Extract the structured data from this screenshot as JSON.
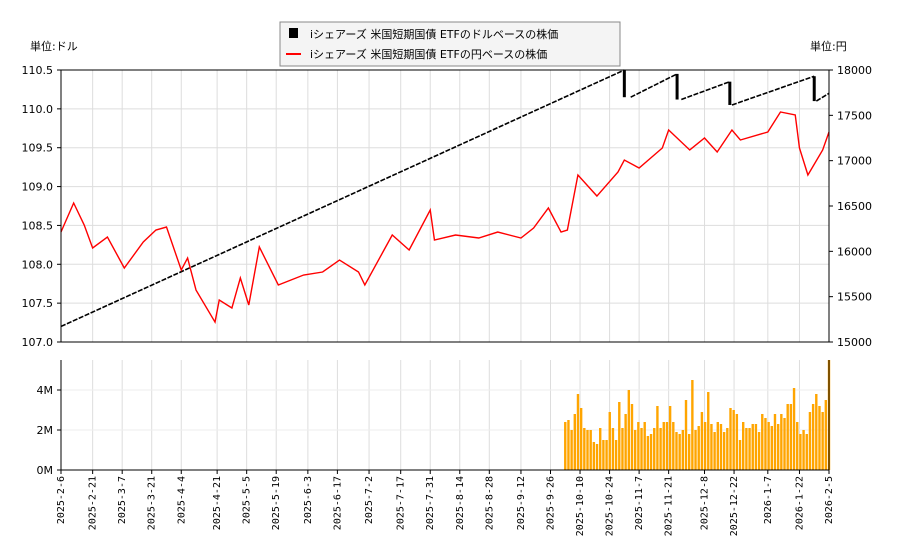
{
  "chart_data": [
    {
      "type": "line",
      "legend": [
        "iシェアーズ 米国短期国債 ETFのドルベースの株価",
        "iシェアーズ 米国短期国債 ETFの円ベースの株価"
      ],
      "legend_placement": "top-center",
      "ylabel_left": "単位:ドル",
      "ylabel_right": "単位:円",
      "ylim_left": [
        107.0,
        110.5
      ],
      "ylim_right": [
        15000,
        18000
      ],
      "yticks_left": [
        "107.0",
        "107.5",
        "108.0",
        "108.5",
        "109.0",
        "109.5",
        "110.0",
        "110.5"
      ],
      "yticks_right": [
        "15000",
        "15500",
        "16000",
        "16500",
        "17000",
        "17500",
        "18000"
      ],
      "grid": true,
      "colors": {
        "usd": "#000000",
        "jpy": "#ff0000"
      },
      "series": [
        {
          "name": "iシェアーズ 米国短期国債 ETFのドルベースの株価",
          "axis": "left",
          "points": [
            [
              "2025-02-06",
              107.2
            ],
            [
              "2025-10-31",
              110.5
            ],
            [
              "2025-11-03",
              110.15
            ],
            [
              "2025-11-25",
              110.45
            ],
            [
              "2025-11-27",
              110.12
            ],
            [
              "2025-12-20",
              110.35
            ],
            [
              "2025-12-21",
              110.05
            ],
            [
              "2026-01-29",
              110.42
            ],
            [
              "2026-01-30",
              110.1
            ],
            [
              "2026-02-05",
              110.2
            ]
          ]
        },
        {
          "name": "iシェアーズ 米国短期国債 ETFの円ベースの株価",
          "axis": "right",
          "points": [
            [
              "2025-02-06",
              16213
            ],
            [
              "2025-02-12",
              16533
            ],
            [
              "2025-02-17",
              16290
            ],
            [
              "2025-02-21",
              16037
            ],
            [
              "2025-02-28",
              16158
            ],
            [
              "2025-03-08",
              15816
            ],
            [
              "2025-03-17",
              16103
            ],
            [
              "2025-03-23",
              16235
            ],
            [
              "2025-03-28",
              16268
            ],
            [
              "2025-04-04",
              15794
            ],
            [
              "2025-04-07",
              15926
            ],
            [
              "2025-04-11",
              15573
            ],
            [
              "2025-04-20",
              15220
            ],
            [
              "2025-04-22",
              15463
            ],
            [
              "2025-04-28",
              15375
            ],
            [
              "2025-05-02",
              15706
            ],
            [
              "2025-05-06",
              15408
            ],
            [
              "2025-05-11",
              16048
            ],
            [
              "2025-05-20",
              15629
            ],
            [
              "2025-05-26",
              15684
            ],
            [
              "2025-06-01",
              15739
            ],
            [
              "2025-06-10",
              15772
            ],
            [
              "2025-06-18",
              15904
            ],
            [
              "2025-06-27",
              15772
            ],
            [
              "2025-06-30",
              15629
            ],
            [
              "2025-07-13",
              16180
            ],
            [
              "2025-07-21",
              16015
            ],
            [
              "2025-07-31",
              16456
            ],
            [
              "2025-08-02",
              16125
            ],
            [
              "2025-08-12",
              16180
            ],
            [
              "2025-08-23",
              16147
            ],
            [
              "2025-09-01",
              16213
            ],
            [
              "2025-09-12",
              16147
            ],
            [
              "2025-09-18",
              16257
            ],
            [
              "2025-09-25",
              16478
            ],
            [
              "2025-10-01",
              16213
            ],
            [
              "2025-10-04",
              16235
            ],
            [
              "2025-10-09",
              16842
            ],
            [
              "2025-10-18",
              16610
            ],
            [
              "2025-10-28",
              16875
            ],
            [
              "2025-10-31",
              17007
            ],
            [
              "2025-11-07",
              16919
            ],
            [
              "2025-11-18",
              17140
            ],
            [
              "2025-11-21",
              17338
            ],
            [
              "2025-12-01",
              17118
            ],
            [
              "2025-12-08",
              17250
            ],
            [
              "2025-12-14",
              17096
            ],
            [
              "2025-12-21",
              17338
            ],
            [
              "2025-12-25",
              17228
            ],
            [
              "2026-01-07",
              17316
            ],
            [
              "2026-01-13",
              17537
            ],
            [
              "2026-01-20",
              17504
            ],
            [
              "2026-01-22",
              17140
            ],
            [
              "2026-01-26",
              16842
            ],
            [
              "2026-02-02",
              17118
            ],
            [
              "2026-02-05",
              17316
            ]
          ]
        }
      ]
    },
    {
      "type": "bar",
      "ylim": [
        0,
        5.5
      ],
      "yticks": [
        "0M",
        "2M",
        "4M"
      ],
      "color": "#ffa500",
      "date_range": [
        "2025-10-03",
        "2026-02-05"
      ],
      "values_millions": [
        2.4,
        2.5,
        2.0,
        2.8,
        3.8,
        3.1,
        2.1,
        2.0,
        2.0,
        1.4,
        1.3,
        2.1,
        1.5,
        1.5,
        2.9,
        2.1,
        1.5,
        3.4,
        2.1,
        2.8,
        4.0,
        3.3,
        2.0,
        2.4,
        2.1,
        2.4,
        1.7,
        1.8,
        2.1,
        3.2,
        2.1,
        2.4,
        2.4,
        3.2,
        2.4,
        1.9,
        1.8,
        2.0,
        3.5,
        1.8,
        4.5,
        2.0,
        2.2,
        2.9,
        2.4,
        3.9,
        2.3,
        1.9,
        2.4,
        2.3,
        1.9,
        2.1,
        3.1,
        3.0,
        2.8,
        1.5,
        2.4,
        2.1,
        2.1,
        2.3,
        2.3,
        1.9,
        2.8,
        2.6,
        2.4,
        2.2,
        2.8,
        2.3,
        2.8,
        2.6,
        3.3,
        3.3,
        4.1,
        2.4,
        1.8,
        2.0,
        1.8,
        2.9,
        3.3,
        3.8,
        3.2,
        2.9,
        3.5,
        5.5
      ]
    }
  ],
  "x_axis": {
    "range": [
      "2025-02-06",
      "2026-02-05"
    ],
    "ticks": [
      "2025-2-6",
      "2025-2-21",
      "2025-3-7",
      "2025-3-21",
      "2025-4-4",
      "2025-4-21",
      "2025-5-5",
      "2025-5-19",
      "2025-6-3",
      "2025-6-17",
      "2025-7-2",
      "2025-7-17",
      "2025-7-31",
      "2025-8-14",
      "2025-8-28",
      "2025-9-12",
      "2025-9-26",
      "2025-10-10",
      "2025-10-24",
      "2025-11-7",
      "2025-11-21",
      "2025-12-8",
      "2025-12-22",
      "2026-1-7",
      "2026-1-22",
      "2026-2-5"
    ]
  }
}
